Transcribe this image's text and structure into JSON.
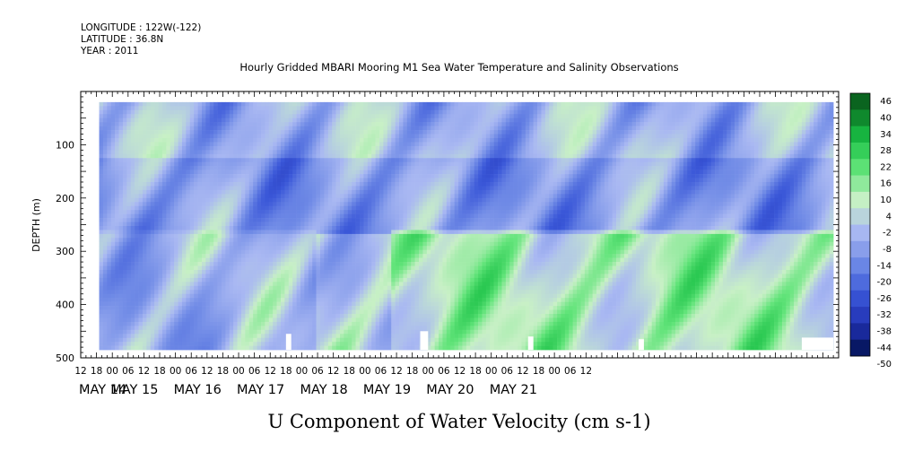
{
  "header_lines": [
    "LONGITUDE : 122W(-122)",
    "LATITUDE : 36.8N",
    "YEAR : 2011"
  ],
  "chart_data": {
    "type": "heatmap",
    "title": "Hourly Gridded MBARI Mooring M1 Sea Water Temperature and Salinity Observations",
    "xlabel": "",
    "ylabel": "DEPTH (m)",
    "bottom_label": "U Component of Water Velocity (cm s-1)",
    "x_hour_ticks": [
      "12",
      "18",
      "00",
      "06",
      "12",
      "18",
      "00",
      "06",
      "12",
      "18",
      "00",
      "06",
      "12",
      "18",
      "00",
      "06",
      "12",
      "18",
      "00",
      "06",
      "12",
      "18",
      "00",
      "06",
      "12",
      "18",
      "00",
      "06",
      "12",
      "18",
      "00",
      "06",
      "12"
    ],
    "x_day_labels": [
      "MAY 14",
      "MAY 15",
      "MAY 16",
      "MAY 17",
      "MAY 18",
      "MAY 19",
      "MAY 20",
      "MAY 21"
    ],
    "x_range_hours_from_may14_00": [
      12,
      300
    ],
    "data_start_hour": 19,
    "data_end_hour": 298,
    "y_ticks": [
      "100",
      "200",
      "300",
      "400",
      "500"
    ],
    "y_range": [
      0,
      500
    ],
    "y_reversed": true,
    "data_depth_range": [
      20,
      485
    ],
    "colorbar_levels": [
      "46",
      "40",
      "34",
      "28",
      "22",
      "16",
      "10",
      "4",
      "-2",
      "-8",
      "-14",
      "-20",
      "-26",
      "-32",
      "-38",
      "-44",
      "-50"
    ],
    "color_range": [
      -50,
      52
    ],
    "colormap": [
      "#00104a",
      "#1f2fb0",
      "#3a57d8",
      "#6f8ae6",
      "#a9b8f2",
      "#c8f0c6",
      "#62e47a",
      "#19c045",
      "#0a6e22",
      "#0b3d14"
    ],
    "zonal_bands": [
      {
        "depth": [
          20,
          120
        ],
        "hours": [
          19,
          298
        ],
        "mean_cm_s": -6
      },
      {
        "depth": [
          120,
          260
        ],
        "hours": [
          19,
          298
        ],
        "mean_cm_s": -12
      },
      {
        "depth": [
          260,
          485
        ],
        "hours": [
          19,
          100
        ],
        "mean_cm_s": -6
      },
      {
        "depth": [
          260,
          485
        ],
        "hours": [
          130,
          300
        ],
        "mean_cm_s": 8
      }
    ],
    "missing_blocks": [
      {
        "hours": [
          90,
          92
        ],
        "depth": [
          455,
          485
        ]
      },
      {
        "hours": [
          141,
          144
        ],
        "depth": [
          450,
          485
        ]
      },
      {
        "hours": [
          182,
          184
        ],
        "depth": [
          460,
          485
        ]
      },
      {
        "hours": [
          224,
          226
        ],
        "depth": [
          465,
          485
        ]
      },
      {
        "hours": [
          286,
          298
        ],
        "depth": [
          462,
          485
        ]
      }
    ]
  }
}
